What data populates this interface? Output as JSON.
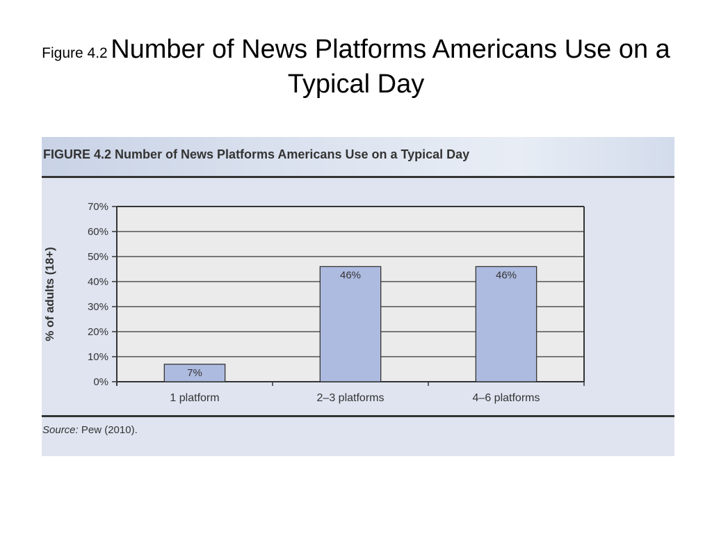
{
  "slide": {
    "title_prefix": "Figure 4.2",
    "title_main": "Number of News Platforms Americans Use on a Typical Day"
  },
  "figure": {
    "caption": "FIGURE 4.2 Number of News Platforms Americans Use on a Typical Day",
    "source_label": "Source:",
    "source_text": "Pew (2010)."
  },
  "colors": {
    "bar_fill": "#aebbe0",
    "bar_stroke": "#333333",
    "plot_background": "#ebebeb",
    "panel_background": "#dfe4f0"
  },
  "chart_data": {
    "type": "bar",
    "categories": [
      "1 platform",
      "2–3 platforms",
      "4–6 platforms"
    ],
    "values": [
      7,
      46,
      46
    ],
    "data_labels": [
      "7%",
      "46%",
      "46%"
    ],
    "ylabel": "% of adults (18+)",
    "ylim": [
      0,
      70
    ],
    "yticks": [
      0,
      10,
      20,
      30,
      40,
      50,
      60,
      70
    ],
    "ytick_labels": [
      "0%",
      "10%",
      "20%",
      "30%",
      "40%",
      "50%",
      "60%",
      "70%"
    ],
    "grid": true
  }
}
